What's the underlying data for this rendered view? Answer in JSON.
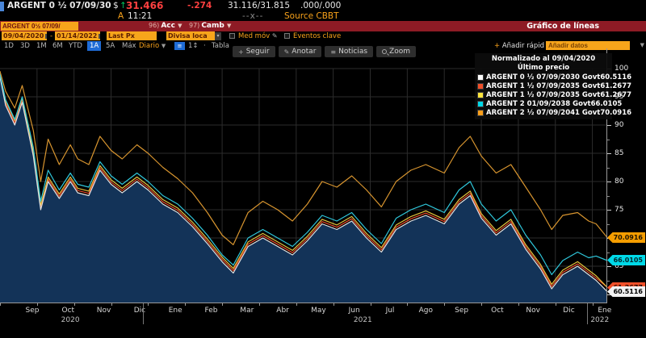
{
  "terminal": {
    "security_line": {
      "ticker": "ARGENT 0 ½ 07/09/30",
      "price_prefix": "$",
      "up_arrow": "↑",
      "last_price": "31.466",
      "change": "-.274",
      "bid_ask": "31.116/31.815",
      "yields": ".000/.000",
      "session": "A",
      "time": "11:21",
      "mid_marker": "--x--",
      "source": "Source CBBT"
    },
    "menu_bar": {
      "ticker_input": "ARGENT 0½ 07/09/",
      "items": [
        {
          "key": "96)",
          "label": "Acc"
        },
        {
          "key": "97)",
          "label": "Camb"
        }
      ],
      "title": "Gráfico de líneas"
    },
    "settings_bar": {
      "date_from": "09/04/2020",
      "date_separator": "-",
      "date_to": "01/14/2022",
      "price_field": "Last Px",
      "currency": "Divisa loca",
      "mov_avg_label": "Med móv",
      "events_label": "Eventos clave"
    },
    "period_bar": {
      "ranges": [
        "1D",
        "3D",
        "1M",
        "6M",
        "YTD",
        "1A",
        "5A",
        "Máx"
      ],
      "active_range": "1A",
      "frequency": "Diario",
      "lag_label": "1↕",
      "dot": "·",
      "table_label": "Tabla",
      "quick_add_label": "Añadir rápid",
      "quick_add_placeholder": "Añadir datos"
    },
    "chart_toolbar": [
      {
        "icon": "plus-icon",
        "label": "Seguir"
      },
      {
        "icon": "pencil-icon",
        "label": "Anotar"
      },
      {
        "icon": "news-icon",
        "label": "Noticias"
      },
      {
        "icon": "magnifier-icon",
        "label": "Zoom"
      }
    ]
  },
  "chart": {
    "legend": {
      "title": "Normalizado al 09/04/2020",
      "subtitle": "Último precio",
      "entries": [
        {
          "swatch": "#ffffff",
          "label": "ARGENT 0 ½ 07/09/2030 Govt",
          "value": "60.5116"
        },
        {
          "swatch": "#f0502a",
          "label": "ARGENT 1 ½ 07/09/2035 Govt",
          "value": "61.2677"
        },
        {
          "swatch": "#ffe43d",
          "label": "ARGENT 1 ½ 07/09/2035 Govt",
          "value": "61.2677"
        },
        {
          "swatch": "#00d9e8",
          "label": "ARGENT 2 01/09/2038 Govt",
          "value": "66.0105"
        },
        {
          "swatch": "#ff9f1a",
          "label": "ARGENT 2 ½ 07/09/2041 Govt",
          "value": "70.0916"
        }
      ]
    },
    "price_flags": [
      {
        "label": "70.0916",
        "price": 70.0916,
        "bg": "#f59d00",
        "fg": "#201400"
      },
      {
        "label": "66.0105",
        "price": 66.0105,
        "bg": "#00d9e8",
        "fg": "#00262b"
      },
      {
        "label": "61.2677",
        "price": 61.2677,
        "bg": "#f0502a",
        "fg": "#200800"
      },
      {
        "label": "60.5116",
        "price": 60.5116,
        "bg": "#f2f2f2",
        "fg": "#000000"
      }
    ]
  },
  "chart_data": {
    "type": "line",
    "title": "Normalizado al 09/04/2020",
    "x_unit": "months from 09/04/2020",
    "x_range": [
      0,
      16.4
    ],
    "ylim": [
      58.5,
      103.5
    ],
    "y_ticks": [
      60,
      65,
      70,
      75,
      80,
      85,
      90,
      95,
      100
    ],
    "x_tick_labels": [
      "Sep",
      "Oct",
      "Nov",
      "Dic",
      "Ene",
      "Feb",
      "Mar",
      "Abr",
      "May",
      "Jun",
      "Jul",
      "Ago",
      "Sep",
      "Oct",
      "Nov",
      "Dic",
      "Ene"
    ],
    "year_labels": [
      {
        "text": "2020",
        "x_month": 1.9
      },
      {
        "text": "2021",
        "x_month": 9.8
      },
      {
        "text": "2022",
        "x_month": 16.2
      }
    ],
    "year_divider_months": [
      3.85,
      15.85
    ],
    "grid": true,
    "legend_position": "top-right",
    "area_fill_series": 0,
    "area_fill_color": "#133358",
    "x": [
      0,
      0.15,
      0.4,
      0.6,
      0.9,
      1.1,
      1.3,
      1.6,
      1.9,
      2.1,
      2.4,
      2.7,
      3.0,
      3.3,
      3.7,
      4.0,
      4.4,
      4.8,
      5.2,
      5.6,
      6.0,
      6.3,
      6.7,
      7.1,
      7.5,
      7.9,
      8.3,
      8.7,
      9.1,
      9.5,
      9.9,
      10.3,
      10.7,
      11.1,
      11.5,
      12.0,
      12.4,
      12.7,
      13.0,
      13.4,
      13.8,
      14.2,
      14.6,
      14.9,
      15.2,
      15.6,
      15.9,
      16.1,
      16.4
    ],
    "series": [
      {
        "name": "ARGENT 0 ½ 07/09/2030 Govt",
        "color": "#e2e2e2",
        "last": 60.5116,
        "values": [
          98.5,
          93.5,
          90,
          94,
          84.5,
          75,
          80,
          77,
          80,
          78,
          77.5,
          82,
          79.5,
          78,
          80,
          78.5,
          76,
          74.5,
          72,
          69,
          65.8,
          63.8,
          68.5,
          70,
          68.5,
          67,
          69.5,
          72.5,
          71.5,
          73,
          70,
          67.5,
          71.5,
          73,
          74,
          72.5,
          76,
          77.5,
          73.5,
          70.5,
          72.5,
          68,
          64.5,
          61,
          63.5,
          65,
          63.5,
          62.5,
          60.51
        ]
      },
      {
        "name": "ARGENT 1 ½ 07/09/2035 Govt",
        "color": "#e84a2a",
        "last": 61.2677,
        "values": [
          98.7,
          93.9,
          90.4,
          94.4,
          84.9,
          75.4,
          80.4,
          77.4,
          80.4,
          78.4,
          77.9,
          82.4,
          79.9,
          78.4,
          80.4,
          78.9,
          76.4,
          74.9,
          72.4,
          69.4,
          66.2,
          64.2,
          68.9,
          70.4,
          68.9,
          67.4,
          69.9,
          72.9,
          71.9,
          73.4,
          70.4,
          67.9,
          71.9,
          73.4,
          74.4,
          72.9,
          76.4,
          77.9,
          73.9,
          70.9,
          72.9,
          68.4,
          64.9,
          61.4,
          63.9,
          65.4,
          63.9,
          62.9,
          61.27
        ]
      },
      {
        "name": "ARGENT 1 ½ 07/09/2035 Govt",
        "color": "#e6c33c",
        "last": 61.2677,
        "values": [
          98.9,
          94.3,
          90.8,
          94.8,
          85.3,
          75.8,
          80.8,
          77.8,
          80.8,
          78.8,
          78.3,
          82.8,
          80.3,
          78.8,
          80.8,
          79.3,
          76.8,
          75.3,
          72.8,
          69.8,
          66.6,
          64.6,
          69.3,
          70.8,
          69.3,
          67.8,
          70.3,
          73.3,
          72.3,
          73.8,
          70.8,
          68.3,
          72.3,
          73.8,
          74.8,
          73.3,
          76.8,
          78.3,
          74.3,
          71.3,
          73.3,
          68.8,
          65.3,
          61.8,
          64.3,
          65.8,
          64.3,
          63.3,
          61.27
        ]
      },
      {
        "name": "ARGENT 2 01/09/2038 Govt",
        "color": "#2fc8dc",
        "last": 66.0105,
        "values": [
          99,
          94.5,
          91,
          95,
          86,
          76.5,
          82,
          78.5,
          81.5,
          79.5,
          79,
          83.5,
          81,
          79.5,
          81.5,
          80,
          77.5,
          76,
          73.5,
          70.5,
          67,
          65.2,
          70,
          71.5,
          70,
          68.5,
          71,
          74,
          73,
          74.5,
          71.5,
          69,
          73.5,
          75,
          76,
          74.5,
          78.5,
          80,
          76,
          73,
          75,
          70.5,
          67,
          63.5,
          66,
          67.5,
          66.5,
          66.8,
          66.01
        ]
      },
      {
        "name": "ARGENT 2 ½ 07/09/2041 Govt",
        "color": "#d8952f",
        "last": 70.0916,
        "values": [
          99.5,
          96,
          93,
          97,
          89,
          80,
          87.5,
          83,
          86.5,
          84,
          83,
          88,
          85.5,
          84,
          86.5,
          85,
          82.5,
          80.5,
          78,
          74.5,
          70.5,
          68.8,
          74.5,
          76.5,
          75,
          73,
          76,
          80,
          79,
          81,
          78.5,
          75.5,
          80,
          82,
          83,
          81.5,
          86,
          88,
          84.5,
          81.5,
          83,
          79,
          75,
          71.5,
          74,
          74.5,
          73,
          72.5,
          70.09
        ]
      }
    ]
  }
}
